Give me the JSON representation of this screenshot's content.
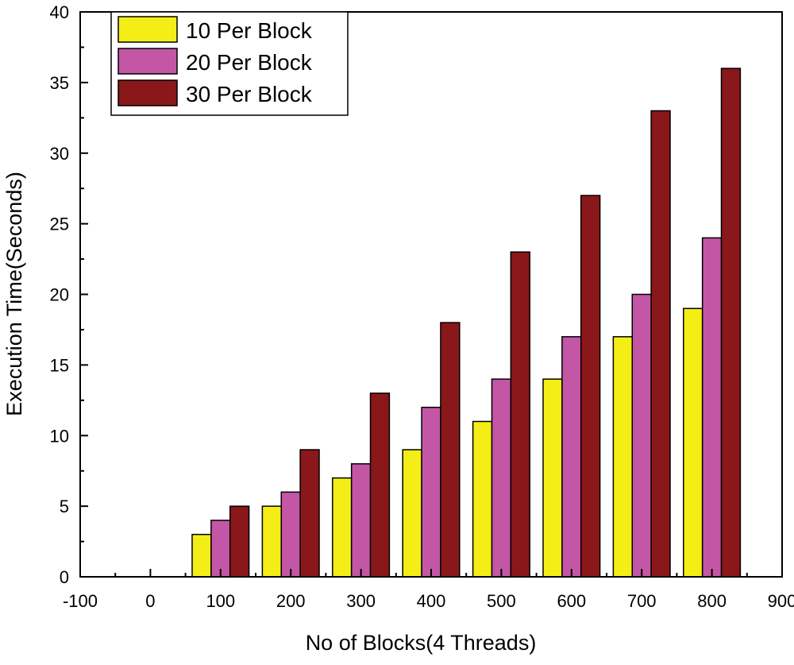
{
  "chart_data": {
    "type": "bar",
    "title": "",
    "xlabel": "No of Blocks(4 Threads)",
    "ylabel": "Execution Time(Seconds)",
    "xlim": [
      -100,
      900
    ],
    "ylim": [
      0,
      40
    ],
    "x_ticks": [
      -100,
      0,
      100,
      200,
      300,
      400,
      500,
      600,
      700,
      800,
      900
    ],
    "y_ticks": [
      0,
      5,
      10,
      15,
      20,
      25,
      30,
      35,
      40
    ],
    "x": [
      100,
      200,
      300,
      400,
      500,
      600,
      700,
      800
    ],
    "bar_width": 27,
    "grid": false,
    "legend_position": "top-left",
    "series": [
      {
        "name": "10 Per Block",
        "color": "#f5ee16",
        "values": [
          3,
          5,
          7,
          9,
          11,
          14,
          17,
          19
        ]
      },
      {
        "name": "20 Per Block",
        "color": "#c456a6",
        "values": [
          4,
          6,
          8,
          12,
          14,
          17,
          20,
          24
        ]
      },
      {
        "name": "30 Per Block",
        "color": "#8a1719",
        "values": [
          5,
          9,
          13,
          18,
          23,
          27,
          33,
          36
        ]
      }
    ]
  }
}
